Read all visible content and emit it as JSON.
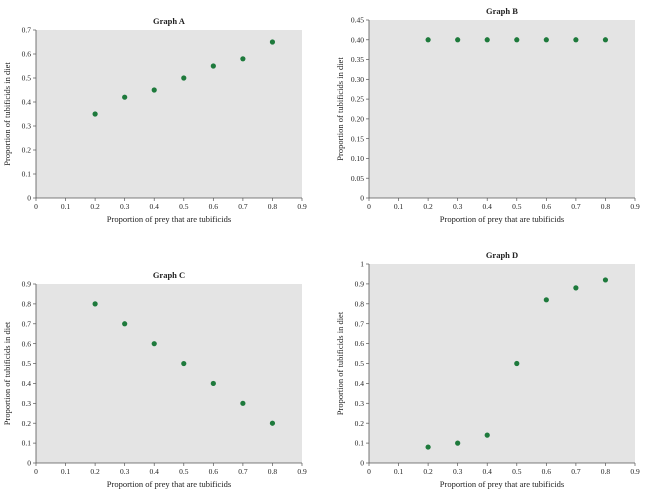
{
  "chart_data": [
    {
      "type": "scatter",
      "title": "Graph A",
      "xlabel": "Proportion of prey that are tubificids",
      "ylabel": "Proportion of tubificids in diet",
      "xlim": [
        0,
        0.9
      ],
      "ylim": [
        0,
        0.7
      ],
      "xticks": [
        "0",
        "0.1",
        "0.2",
        "0.3",
        "0.4",
        "0.5",
        "0.6",
        "0.7",
        "0.8",
        "0.9"
      ],
      "yticks": [
        "0",
        "0.1",
        "0.2",
        "0.3",
        "0.4",
        "0.5",
        "0.6",
        "0.7"
      ],
      "x": [
        0.2,
        0.3,
        0.4,
        0.5,
        0.6,
        0.7,
        0.8
      ],
      "y": [
        0.35,
        0.42,
        0.45,
        0.5,
        0.55,
        0.58,
        0.65
      ],
      "grid": false,
      "marker_color": "#1e7a3c",
      "plot_bg": "#e4e4e4"
    },
    {
      "type": "scatter",
      "title": "Graph B",
      "xlabel": "Proportion of prey that are tubificids",
      "ylabel": "Proportion of tubificids in diet",
      "xlim": [
        0,
        0.9
      ],
      "ylim": [
        0,
        0.45
      ],
      "xticks": [
        "0",
        "0.1",
        "0.2",
        "0.3",
        "0.4",
        "0.5",
        "0.6",
        "0.7",
        "0.8",
        "0.9"
      ],
      "yticks": [
        "0",
        "0.05",
        "0.10",
        "0.15",
        "0.20",
        "0.25",
        "0.30",
        "0.35",
        "0.40",
        "0.45"
      ],
      "x": [
        0.2,
        0.3,
        0.4,
        0.5,
        0.6,
        0.7,
        0.8
      ],
      "y": [
        0.4,
        0.4,
        0.4,
        0.4,
        0.4,
        0.4,
        0.4
      ],
      "grid": false,
      "marker_color": "#1e7a3c",
      "plot_bg": "#e4e4e4"
    },
    {
      "type": "scatter",
      "title": "Graph C",
      "xlabel": "Proportion of prey that are tubificids",
      "ylabel": "Proportion of tubificids in diet",
      "xlim": [
        0,
        0.9
      ],
      "ylim": [
        0,
        0.9
      ],
      "xticks": [
        "0",
        "0.1",
        "0.2",
        "0.3",
        "0.4",
        "0.5",
        "0.6",
        "0.7",
        "0.8",
        "0.9"
      ],
      "yticks": [
        "0",
        "0.1",
        "0.2",
        "0.3",
        "0.4",
        "0.5",
        "0.6",
        "0.7",
        "0.8",
        "0.9"
      ],
      "x": [
        0.2,
        0.3,
        0.4,
        0.5,
        0.6,
        0.7,
        0.8
      ],
      "y": [
        0.8,
        0.7,
        0.6,
        0.5,
        0.4,
        0.3,
        0.2
      ],
      "grid": false,
      "marker_color": "#1e7a3c",
      "plot_bg": "#e4e4e4"
    },
    {
      "type": "scatter",
      "title": "Graph D",
      "xlabel": "Proportion of prey that are tubificids",
      "ylabel": "Proportion of tubificids in diet",
      "xlim": [
        0,
        0.9
      ],
      "ylim": [
        0,
        1
      ],
      "xticks": [
        "0",
        "0.1",
        "0.2",
        "0.3",
        "0.4",
        "0.5",
        "0.6",
        "0.7",
        "0.8",
        "0.9"
      ],
      "yticks": [
        "0",
        "0.1",
        "0.2",
        "0.3",
        "0.4",
        "0.5",
        "0.6",
        "0.7",
        "0.8",
        "0.9",
        "1"
      ],
      "x": [
        0.2,
        0.3,
        0.4,
        0.5,
        0.6,
        0.7,
        0.8
      ],
      "y": [
        0.08,
        0.1,
        0.14,
        0.5,
        0.82,
        0.88,
        0.92
      ],
      "grid": false,
      "marker_color": "#1e7a3c",
      "plot_bg": "#e4e4e4"
    }
  ]
}
